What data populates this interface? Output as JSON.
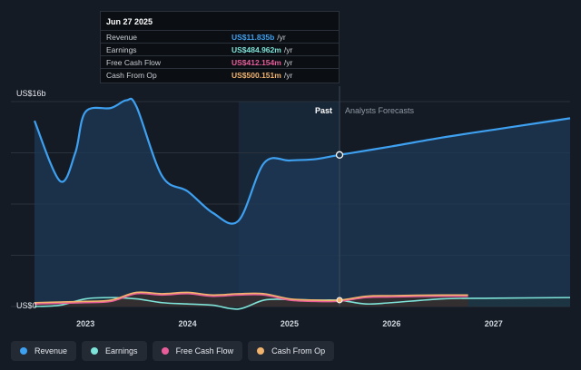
{
  "tooltip": {
    "date": "Jun 27 2025",
    "rows": [
      {
        "name": "Revenue",
        "value": "US$11.835b",
        "unit": "/yr",
        "color": "#3ea0f0"
      },
      {
        "name": "Earnings",
        "value": "US$484.962m",
        "unit": "/yr",
        "color": "#7ee3d8"
      },
      {
        "name": "Free Cash Flow",
        "value": "US$412.154m",
        "unit": "/yr",
        "color": "#e85d9a"
      },
      {
        "name": "Cash From Op",
        "value": "US$500.151m",
        "unit": "/yr",
        "color": "#f2b36d"
      }
    ]
  },
  "chart_data": {
    "type": "line",
    "y_axis_labels": {
      "top": "US$16b",
      "bottom": "US$0"
    },
    "ylim": [
      0,
      16
    ],
    "xlim": [
      2022.5,
      2027.75
    ],
    "x_ticks": [
      2023,
      2024,
      2025,
      2026,
      2027
    ],
    "x_tick_labels": [
      "2023",
      "2024",
      "2025",
      "2026",
      "2027"
    ],
    "split_x": 2025.49,
    "shaded_from_x": 2024.5,
    "region_labels": {
      "past": "Past",
      "forecast": "Analysts Forecasts"
    },
    "highlight_x": 2025.49,
    "series": [
      {
        "name": "Revenue",
        "color": "#3ea0f0",
        "x": [
          2022.5,
          2022.75,
          2022.9,
          2023.0,
          2023.25,
          2023.4,
          2023.5,
          2023.75,
          2024.0,
          2024.25,
          2024.5,
          2024.75,
          2025.0,
          2025.25,
          2025.49,
          2026.0,
          2026.5,
          2027.0,
          2027.5,
          2027.75
        ],
        "y": [
          14.5,
          9.8,
          12.0,
          15.2,
          15.5,
          16.1,
          15.6,
          10.2,
          9.0,
          7.3,
          6.7,
          11.2,
          11.4,
          11.5,
          11.835,
          12.5,
          13.2,
          13.8,
          14.4,
          14.7
        ]
      },
      {
        "name": "Earnings",
        "color": "#7ee3d8",
        "x": [
          2022.5,
          2022.75,
          2023.0,
          2023.25,
          2023.5,
          2023.75,
          2024.0,
          2024.25,
          2024.5,
          2024.75,
          2025.0,
          2025.25,
          2025.49,
          2025.75,
          2026.0,
          2026.5,
          2027.0,
          2027.75
        ],
        "y": [
          0.0,
          0.1,
          0.6,
          0.7,
          0.6,
          0.3,
          0.2,
          0.1,
          -0.2,
          0.5,
          0.55,
          0.5,
          0.485,
          0.2,
          0.3,
          0.6,
          0.65,
          0.7
        ]
      },
      {
        "name": "Free Cash Flow",
        "color": "#e85d9a",
        "x": [
          2022.5,
          2022.75,
          2023.0,
          2023.25,
          2023.5,
          2023.75,
          2024.0,
          2024.25,
          2024.5,
          2024.75,
          2025.0,
          2025.25,
          2025.49,
          2025.75,
          2026.0,
          2026.5,
          2026.75
        ],
        "y": [
          0.2,
          0.25,
          0.3,
          0.4,
          1.0,
          0.9,
          1.0,
          0.8,
          0.9,
          0.9,
          0.5,
          0.4,
          0.412,
          0.7,
          0.75,
          0.8,
          0.8
        ]
      },
      {
        "name": "Cash From Op",
        "color": "#f2b36d",
        "x": [
          2022.5,
          2022.75,
          2023.0,
          2023.25,
          2023.5,
          2023.75,
          2024.0,
          2024.25,
          2024.5,
          2024.75,
          2025.0,
          2025.25,
          2025.49,
          2025.75,
          2026.0,
          2026.5,
          2026.75
        ],
        "y": [
          0.3,
          0.35,
          0.4,
          0.5,
          1.1,
          1.0,
          1.1,
          0.9,
          1.0,
          1.0,
          0.6,
          0.5,
          0.5,
          0.8,
          0.85,
          0.9,
          0.9
        ]
      }
    ]
  },
  "legend": [
    {
      "label": "Revenue",
      "color": "#3ea0f0"
    },
    {
      "label": "Earnings",
      "color": "#7ee3d8"
    },
    {
      "label": "Free Cash Flow",
      "color": "#e85d9a"
    },
    {
      "label": "Cash From Op",
      "color": "#f2b36d"
    }
  ]
}
